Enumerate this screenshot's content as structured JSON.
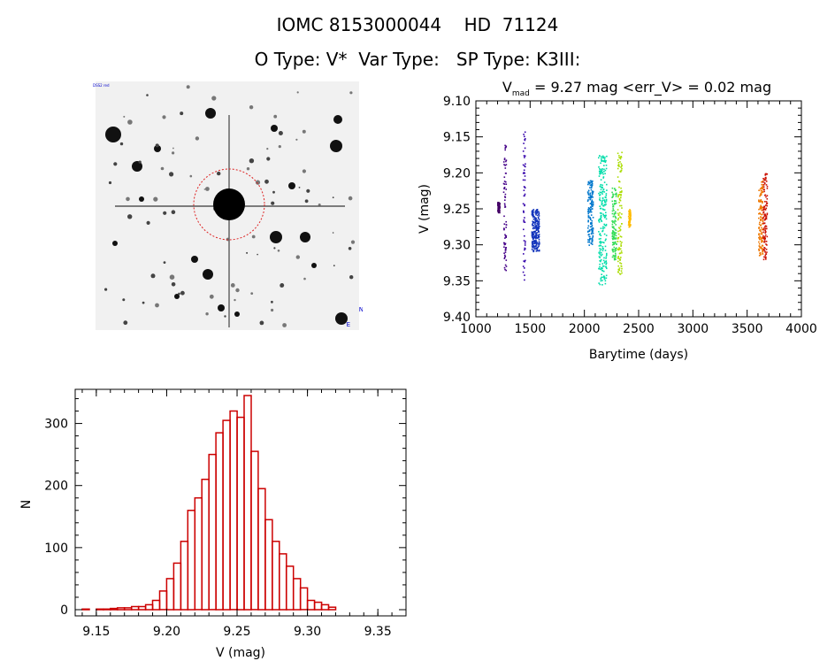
{
  "header": {
    "line1_parts": [
      "IOMC 8153000044",
      "HD  71124"
    ],
    "line2_parts": [
      "O Type: V*",
      "Var Type:",
      "SP Type: K3III:"
    ]
  },
  "colors": {
    "axis": "#000000",
    "histogram": "#cc0000",
    "circle": "#dd2222",
    "sky_bg": "#f1f1f1"
  },
  "chart_data": [
    {
      "type": "image",
      "description_labels": [
        "DSS2 red",
        "N",
        "E"
      ]
    },
    {
      "type": "scatter",
      "title_parts": {
        "v": "V",
        "sub": "mad",
        "rest": " = 9.27 mag <err_V> = 0.02 mag"
      },
      "xlabel": "Barytime (days)",
      "ylabel": "V (mag)",
      "xlim": [
        1000,
        4000
      ],
      "ylim": [
        9.4,
        9.1
      ],
      "y_reversed": true,
      "xticks": [
        1000,
        1500,
        2000,
        2500,
        3000,
        3500,
        4000
      ],
      "yticks": [
        "9.10",
        "9.15",
        "9.20",
        "9.25",
        "9.30",
        "9.35",
        "9.40"
      ],
      "groups": [
        {
          "x": [
            1195,
            1215
          ],
          "y": [
            9.24,
            9.255
          ],
          "color": "#440066"
        },
        {
          "x": [
            1250,
            1275
          ],
          "y": [
            9.16,
            9.335
          ],
          "color": "#440088"
        },
        {
          "x": [
            1430,
            1450
          ],
          "y": [
            9.14,
            9.355
          ],
          "color": "#3300aa"
        },
        {
          "x": [
            1510,
            1580
          ],
          "y": [
            9.25,
            9.31
          ],
          "color": "#1133bb"
        },
        {
          "x": [
            2025,
            2075
          ],
          "y": [
            9.21,
            9.3
          ],
          "color": "#0077cc"
        },
        {
          "x": [
            2125,
            2200
          ],
          "y": [
            9.175,
            9.355
          ],
          "color": "#00ddaa"
        },
        {
          "x": [
            2250,
            2290
          ],
          "y": [
            9.22,
            9.32
          ],
          "color": "#33dd55"
        },
        {
          "x": [
            2300,
            2340
          ],
          "y": [
            9.17,
            9.34
          ],
          "color": "#aadd00"
        },
        {
          "x": [
            2400,
            2420
          ],
          "y": [
            9.25,
            9.275
          ],
          "color": "#ffbb00"
        },
        {
          "x": [
            3600,
            3640
          ],
          "y": [
            9.21,
            9.315
          ],
          "color": "#ee7700"
        },
        {
          "x": [
            3640,
            3680
          ],
          "y": [
            9.2,
            9.32
          ],
          "color": "#cc1100"
        }
      ]
    },
    {
      "type": "bar",
      "xlabel": "V (mag)",
      "ylabel": "N",
      "xlim": [
        9.135,
        9.37
      ],
      "ylim": [
        -10,
        355
      ],
      "xticks": [
        "9.15",
        "9.20",
        "9.25",
        "9.30",
        "9.35"
      ],
      "yticks": [
        0,
        100,
        200,
        300
      ],
      "bin_start": 9.14,
      "bin_width": 0.005,
      "counts": [
        1,
        0,
        1,
        1,
        2,
        3,
        3,
        5,
        5,
        8,
        15,
        30,
        50,
        75,
        110,
        160,
        180,
        210,
        250,
        285,
        305,
        320,
        310,
        345,
        255,
        195,
        145,
        110,
        90,
        70,
        50,
        35,
        15,
        12,
        8,
        4
      ]
    }
  ]
}
